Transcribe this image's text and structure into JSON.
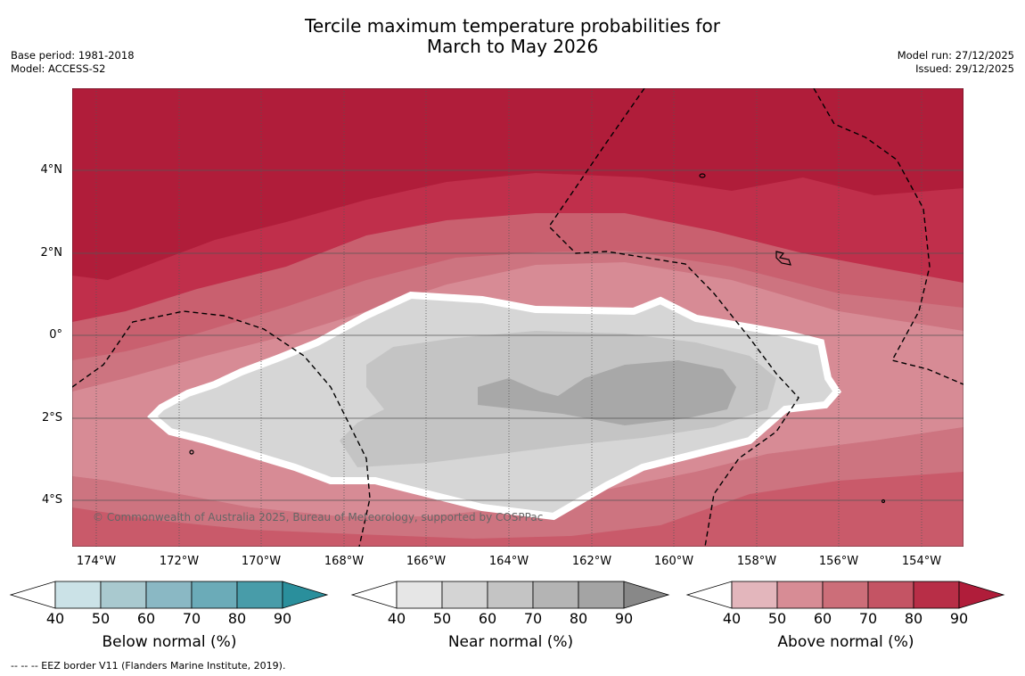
{
  "title_line1": "Tercile maximum temperature probabilities for",
  "title_line2": "March to May 2026",
  "base_period": "Base period: 1981-2018",
  "model": "Model: ACCESS-S2",
  "model_run": "Model run: 27/12/2025",
  "issued": "Issued: 29/12/2025",
  "copyright": "© Commonwealth of Australia 2025, Bureau of Meteorology, supported by COSPPac",
  "footer": "-- -- -- EEZ border V11 (Flanders Marine Institute, 2019).",
  "map": {
    "lon_range": [
      -174.6,
      -152.9
    ],
    "lat_range": [
      -5.0,
      5.8
    ],
    "lat_labels": [
      "4°N",
      "2°N",
      "0°",
      "2°S",
      "4°S"
    ],
    "lon_labels": [
      "174°W",
      "172°W",
      "170°W",
      "168°W",
      "166°W",
      "164°W",
      "162°W",
      "160°W",
      "158°W",
      "156°W",
      "154°W"
    ]
  },
  "colorbars": [
    {
      "label": "Below normal (%)",
      "ticks": [
        "40",
        "50",
        "60",
        "70",
        "80",
        "90"
      ],
      "colors": [
        "#cbe2e7",
        "#a9c9cf",
        "#8ab8c4",
        "#6babb8",
        "#489ca9",
        "#2a8f9c"
      ]
    },
    {
      "label": "Near normal (%)",
      "ticks": [
        "40",
        "50",
        "60",
        "70",
        "80",
        "90"
      ],
      "colors": [
        "#e6e6e6",
        "#d4d4d4",
        "#c4c4c4",
        "#b4b4b4",
        "#a4a4a4",
        "#888888"
      ]
    },
    {
      "label": "Above normal (%)",
      "ticks": [
        "40",
        "50",
        "60",
        "70",
        "80",
        "90"
      ],
      "colors": [
        "#e3b6bc",
        "#d78c95",
        "#cc6e79",
        "#c45464",
        "#b82e47",
        "#b01d3a"
      ]
    }
  ]
}
